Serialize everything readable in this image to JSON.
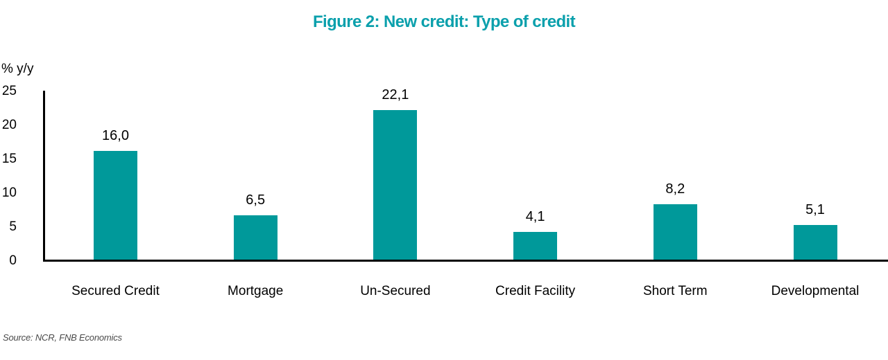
{
  "title": "Figure 2: New credit: Type of credit",
  "source": "Source: NCR, FNB Economics",
  "chart_data": {
    "type": "bar",
    "title": "Figure 2: New credit: Type of credit",
    "categories": [
      "Secured Credit",
      "Mortgage",
      "Un-Secured",
      "Credit Facility",
      "Short Term",
      "Developmental"
    ],
    "values": [
      16.0,
      6.5,
      22.1,
      4.1,
      8.2,
      5.1
    ],
    "value_labels": [
      "16,0",
      "6,5",
      "22,1",
      "4,1",
      "8,2",
      "5,1"
    ],
    "xlabel": "",
    "ylabel": "% y/y",
    "ylim": [
      0,
      25
    ],
    "yticks": [
      0,
      5,
      10,
      15,
      20,
      25
    ],
    "grid": false,
    "legend": "none",
    "bar_color": "#00999A",
    "title_color": "#0BA0AC",
    "axis_color": "#000000"
  }
}
